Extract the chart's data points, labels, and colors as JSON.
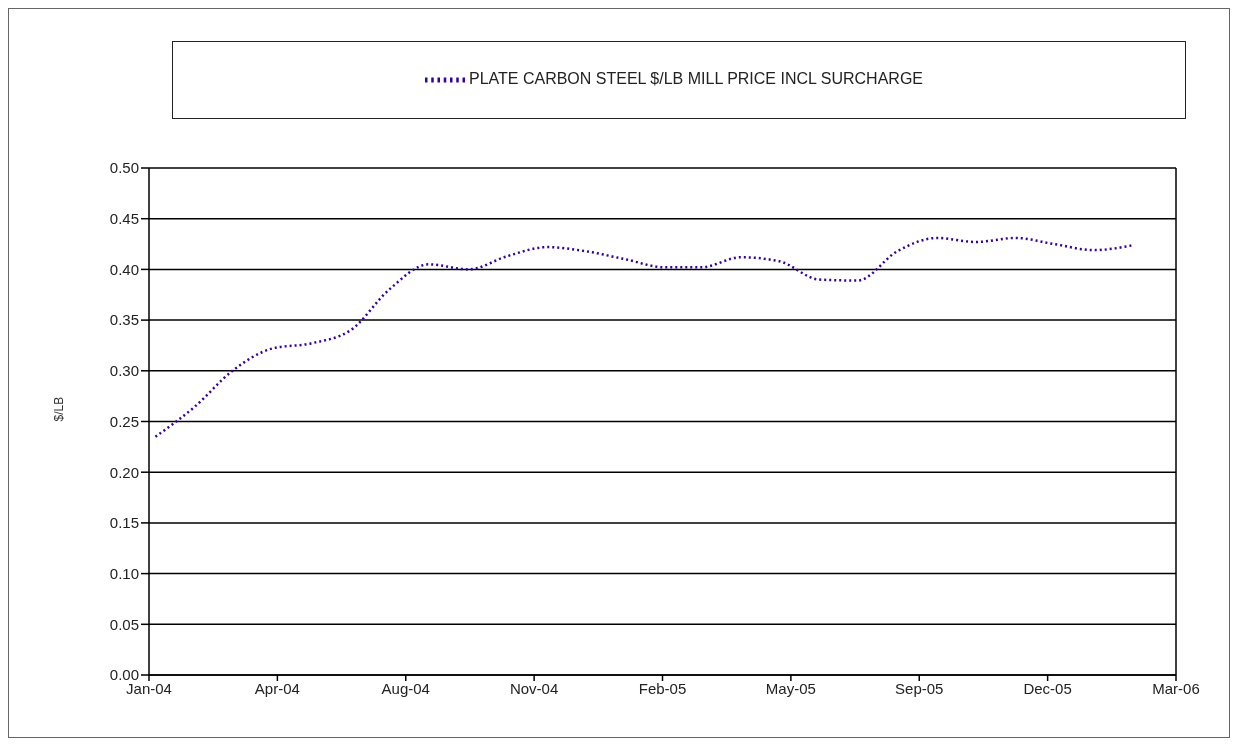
{
  "chart_data": {
    "type": "line",
    "ylabel": "$/LB",
    "legend": "top",
    "grid": "y",
    "line_style": "dotted",
    "marker": "none",
    "x": [
      "2004-01-19",
      "2004-02-19",
      "2004-03-19",
      "2004-04-19",
      "2004-05-19",
      "2004-06-19",
      "2004-07-19",
      "2004-08-19",
      "2004-09-19",
      "2004-10-19",
      "2004-11-19",
      "2004-12-19",
      "2005-01-19",
      "2005-02-19",
      "2005-03-19",
      "2005-04-19",
      "2005-05-19",
      "2005-06-19",
      "2005-07-19",
      "2005-08-19",
      "2005-09-19",
      "2005-10-19",
      "2005-11-19",
      "2005-12-19",
      "2006-01-19",
      "2006-02-19"
    ],
    "series": [
      {
        "name": "PLATE CARBON STEEL $/LB MILL PRICE INCL SURCHARGE",
        "color": "#330099",
        "values": [
          0.235,
          0.265,
          0.3,
          0.322,
          0.327,
          0.34,
          0.38,
          0.405,
          0.4,
          0.413,
          0.422,
          0.418,
          0.41,
          0.402,
          0.402,
          0.412,
          0.408,
          0.39,
          0.389,
          0.418,
          0.431,
          0.427,
          0.431,
          0.425,
          0.419,
          0.424
        ]
      }
    ],
    "xlim": [
      "2004-01-14",
      "2006-03-24"
    ],
    "xticks": [
      {
        "value": "2004-01-14",
        "label": "Jan-04"
      },
      {
        "value": "2004-04-23",
        "label": "Apr-04"
      },
      {
        "value": "2004-08-01",
        "label": "Aug-04"
      },
      {
        "value": "2004-11-09",
        "label": "Nov-04"
      },
      {
        "value": "2005-02-17",
        "label": "Feb-05"
      },
      {
        "value": "2005-05-28",
        "label": "May-05"
      },
      {
        "value": "2005-09-05",
        "label": "Sep-05"
      },
      {
        "value": "2005-12-14",
        "label": "Dec-05"
      },
      {
        "value": "2006-03-24",
        "label": "Mar-06"
      }
    ],
    "ylim": [
      0,
      0.5
    ],
    "yticks": [
      {
        "value": 0,
        "label": "0.00"
      },
      {
        "value": 0.05,
        "label": "0.05"
      },
      {
        "value": 0.1,
        "label": "0.10"
      },
      {
        "value": 0.15,
        "label": "0.15"
      },
      {
        "value": 0.2,
        "label": "0.20"
      },
      {
        "value": 0.25,
        "label": "0.25"
      },
      {
        "value": 0.3,
        "label": "0.30"
      },
      {
        "value": 0.35,
        "label": "0.35"
      },
      {
        "value": 0.4,
        "label": "0.40"
      },
      {
        "value": 0.45,
        "label": "0.45"
      },
      {
        "value": 0.5,
        "label": "0.50"
      }
    ]
  }
}
